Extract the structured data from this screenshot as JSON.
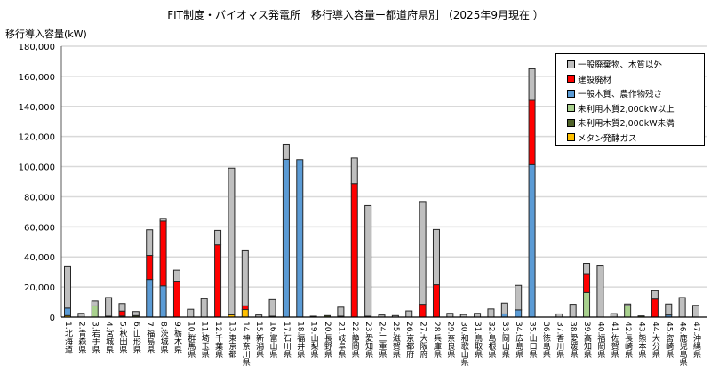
{
  "chart_data": {
    "type": "bar",
    "stacked": true,
    "title": "FIT制度・バイオマス発電所　移行導入容量ー都道府県別 （2025年9月現在 ）",
    "ylabel": "移行導入容量(kW)",
    "xlabel": "",
    "ylim": [
      0,
      180000
    ],
    "yticks": [
      "0",
      "20,000",
      "40,000",
      "60,000",
      "80,000",
      "100,000",
      "120,000",
      "140,000",
      "160,000",
      "180,000"
    ],
    "grid": true,
    "legend_position": "top-right",
    "categories": [
      "1.北海道",
      "2.青森県",
      "3.岩手県",
      "4.宮城県",
      "5.秋田県",
      "6.山形県",
      "7.福島県",
      "8.茨城県",
      "9.栃木県",
      "10.群馬県",
      "11.埼玉県",
      "12.千葉県",
      "13.東京都",
      "14.神奈川県",
      "15.新潟県",
      "16.富山県",
      "17.石川県",
      "18.福井県",
      "19.山梨県",
      "20.長野県",
      "21.岐阜県",
      "22.静岡県",
      "23.愛知県",
      "24.三重県",
      "25.滋賀県",
      "26.京都府",
      "27.大阪府",
      "28.兵庫県",
      "29.奈良県",
      "30.和歌山県",
      "31.鳥取県",
      "32.島根県",
      "33.岡山県",
      "34.広島県",
      "35.山口県",
      "36.徳島県",
      "37.香川県",
      "38.愛媛県",
      "39.高知県",
      "40.福岡県",
      "41.佐賀県",
      "42.長崎県",
      "43.熊本県",
      "44.大分県",
      "45.宮崎県",
      "46.鹿児島県",
      "47.沖縄県"
    ],
    "series": [
      {
        "name": "メタン発酵ガス",
        "color": "#ffc000",
        "values": [
          1000,
          0,
          0,
          0,
          0,
          0,
          0,
          0,
          0,
          0,
          0,
          0,
          1500,
          5000,
          0,
          0,
          0,
          0,
          0,
          0,
          0,
          0,
          0,
          0,
          0,
          0,
          0,
          0,
          0,
          0,
          0,
          0,
          0,
          0,
          0,
          0,
          0,
          0,
          0,
          0,
          0,
          0,
          0,
          0,
          0,
          0,
          0
        ]
      },
      {
        "name": "未利用木質2,000kW未満",
        "color": "#4f6228",
        "values": [
          0,
          0,
          0,
          600,
          700,
          1000,
          0,
          0,
          0,
          0,
          0,
          0,
          0,
          0,
          0,
          600,
          0,
          0,
          600,
          1000,
          600,
          0,
          600,
          0,
          0,
          0,
          0,
          0,
          0,
          0,
          0,
          0,
          0,
          0,
          0,
          0,
          0,
          0,
          0,
          0,
          0,
          0,
          800,
          0,
          0,
          0,
          0
        ]
      },
      {
        "name": "未利用木質2,000kW以上",
        "color": "#a9d18e",
        "values": [
          0,
          0,
          7400,
          0,
          0,
          0,
          0,
          0,
          0,
          0,
          0,
          0,
          0,
          0,
          0,
          0,
          0,
          0,
          0,
          0,
          0,
          0,
          0,
          0,
          0,
          0,
          0,
          0,
          0,
          0,
          0,
          0,
          0,
          0,
          0,
          0,
          0,
          0,
          16300,
          0,
          0,
          7600,
          0,
          0,
          0,
          0,
          0
        ]
      },
      {
        "name": "一般木質、農作物残さ",
        "color": "#5b9bd5",
        "values": [
          5000,
          0,
          0,
          0,
          0,
          0,
          25000,
          20800,
          0,
          0,
          0,
          0,
          0,
          0,
          0,
          0,
          104800,
          104600,
          0,
          0,
          0,
          0,
          0,
          0,
          0,
          0,
          0,
          0,
          0,
          0,
          0,
          0,
          2100,
          4800,
          101300,
          0,
          0,
          0,
          0,
          0,
          0,
          0,
          0,
          0,
          1400,
          0,
          0
        ]
      },
      {
        "name": "建設廃材",
        "color": "#ff0000",
        "values": [
          0,
          0,
          0,
          0,
          3300,
          0,
          16000,
          43000,
          23900,
          0,
          0,
          48000,
          0,
          2500,
          0,
          0,
          0,
          0,
          0,
          0,
          0,
          88700,
          0,
          0,
          0,
          0,
          8500,
          21500,
          0,
          0,
          0,
          0,
          0,
          0,
          42700,
          0,
          0,
          0,
          12600,
          0,
          0,
          0,
          0,
          12000,
          0,
          0,
          0
        ]
      },
      {
        "name": "一般廃棄物、木質以外",
        "color": "#bfbfbf",
        "values": [
          28000,
          2500,
          3300,
          12400,
          5000,
          2700,
          17000,
          1800,
          7300,
          5200,
          12200,
          9600,
          97500,
          37100,
          1400,
          11000,
          10000,
          0,
          0,
          0,
          6000,
          17000,
          73500,
          1400,
          1000,
          4100,
          68300,
          36700,
          2500,
          1700,
          2500,
          5400,
          7200,
          16300,
          21000,
          0,
          2100,
          8500,
          6800,
          34500,
          2300,
          1100,
          0,
          5500,
          7300,
          13000,
          7800
        ]
      }
    ],
    "legend_order": [
      5,
      4,
      3,
      2,
      1,
      0
    ]
  }
}
